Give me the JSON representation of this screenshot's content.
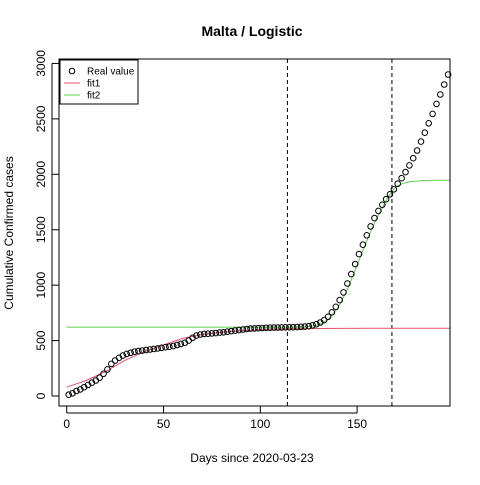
{
  "chart_data": {
    "type": "scatter",
    "title": "Malta / Logistic",
    "xlabel": "Days since 2020-03-23",
    "ylabel": "Cumulative Confirmed cases",
    "xlim": [
      -4,
      198
    ],
    "ylim": [
      -90,
      3040
    ],
    "x_ticks": [
      0,
      50,
      100,
      150
    ],
    "y_ticks": [
      0,
      500,
      1000,
      1500,
      2000,
      2500,
      3000
    ],
    "grid": false,
    "legend_position": "top-left",
    "vlines": [
      114,
      168
    ],
    "legend": [
      {
        "label": "Real value",
        "kind": "point",
        "color": "#000000"
      },
      {
        "label": "fit1",
        "kind": "line",
        "color": "#df536b"
      },
      {
        "label": "fit2",
        "kind": "line",
        "color": "#61d04f"
      }
    ],
    "series": [
      {
        "name": "Real value",
        "kind": "points",
        "color": "#000000",
        "points": [
          [
            1,
            12
          ],
          [
            3,
            25
          ],
          [
            5,
            45
          ],
          [
            7,
            60
          ],
          [
            9,
            80
          ],
          [
            11,
            100
          ],
          [
            13,
            120
          ],
          [
            15,
            140
          ],
          [
            17,
            165
          ],
          [
            19,
            200
          ],
          [
            21,
            240
          ],
          [
            23,
            290
          ],
          [
            25,
            320
          ],
          [
            27,
            345
          ],
          [
            29,
            365
          ],
          [
            31,
            380
          ],
          [
            33,
            390
          ],
          [
            35,
            400
          ],
          [
            37,
            405
          ],
          [
            39,
            410
          ],
          [
            41,
            415
          ],
          [
            43,
            420
          ],
          [
            45,
            425
          ],
          [
            47,
            430
          ],
          [
            49,
            435
          ],
          [
            51,
            440
          ],
          [
            53,
            445
          ],
          [
            55,
            450
          ],
          [
            57,
            460
          ],
          [
            59,
            470
          ],
          [
            61,
            480
          ],
          [
            63,
            500
          ],
          [
            65,
            525
          ],
          [
            67,
            545
          ],
          [
            69,
            555
          ],
          [
            71,
            560
          ],
          [
            73,
            562
          ],
          [
            75,
            565
          ],
          [
            77,
            568
          ],
          [
            79,
            572
          ],
          [
            81,
            575
          ],
          [
            83,
            580
          ],
          [
            85,
            585
          ],
          [
            87,
            590
          ],
          [
            89,
            595
          ],
          [
            91,
            600
          ],
          [
            93,
            605
          ],
          [
            95,
            608
          ],
          [
            97,
            610
          ],
          [
            99,
            612
          ],
          [
            101,
            614
          ],
          [
            103,
            615
          ],
          [
            105,
            616
          ],
          [
            107,
            617
          ],
          [
            109,
            618
          ],
          [
            111,
            619
          ],
          [
            113,
            620
          ],
          [
            115,
            620
          ],
          [
            117,
            621
          ],
          [
            119,
            622
          ],
          [
            121,
            624
          ],
          [
            123,
            626
          ],
          [
            125,
            630
          ],
          [
            127,
            638
          ],
          [
            129,
            648
          ],
          [
            131,
            663
          ],
          [
            133,
            685
          ],
          [
            135,
            715
          ],
          [
            137,
            755
          ],
          [
            139,
            805
          ],
          [
            141,
            865
          ],
          [
            143,
            935
          ],
          [
            145,
            1015
          ],
          [
            147,
            1100
          ],
          [
            149,
            1190
          ],
          [
            151,
            1280
          ],
          [
            153,
            1365
          ],
          [
            155,
            1450
          ],
          [
            157,
            1530
          ],
          [
            159,
            1605
          ],
          [
            161,
            1670
          ],
          [
            163,
            1725
          ],
          [
            165,
            1775
          ],
          [
            167,
            1820
          ],
          [
            169,
            1865
          ],
          [
            171,
            1915
          ],
          [
            173,
            1965
          ],
          [
            175,
            2020
          ],
          [
            177,
            2080
          ],
          [
            179,
            2145
          ],
          [
            181,
            2215
          ],
          [
            183,
            2295
          ],
          [
            185,
            2375
          ],
          [
            187,
            2460
          ],
          [
            189,
            2545
          ],
          [
            191,
            2635
          ],
          [
            193,
            2720
          ],
          [
            195,
            2810
          ],
          [
            197,
            2900
          ]
        ]
      },
      {
        "name": "fit1",
        "kind": "line",
        "color": "#df536b",
        "points": [
          [
            0,
            80
          ],
          [
            10,
            140
          ],
          [
            20,
            220
          ],
          [
            30,
            320
          ],
          [
            40,
            400
          ],
          [
            50,
            460
          ],
          [
            60,
            520
          ],
          [
            70,
            555
          ],
          [
            80,
            575
          ],
          [
            90,
            588
          ],
          [
            100,
            597
          ],
          [
            110,
            605
          ],
          [
            120,
            608
          ],
          [
            130,
            609
          ],
          [
            140,
            610
          ],
          [
            160,
            611
          ],
          [
            180,
            611
          ],
          [
            198,
            611
          ]
        ]
      },
      {
        "name": "fit2",
        "kind": "line",
        "color": "#61d04f",
        "points": [
          [
            0,
            622
          ],
          [
            20,
            622
          ],
          [
            40,
            622
          ],
          [
            60,
            622
          ],
          [
            80,
            622
          ],
          [
            100,
            622
          ],
          [
            120,
            623
          ],
          [
            125,
            626
          ],
          [
            130,
            640
          ],
          [
            135,
            690
          ],
          [
            140,
            790
          ],
          [
            145,
            960
          ],
          [
            150,
            1180
          ],
          [
            155,
            1400
          ],
          [
            160,
            1600
          ],
          [
            165,
            1760
          ],
          [
            168,
            1850
          ],
          [
            171,
            1895
          ],
          [
            174,
            1920
          ],
          [
            178,
            1935
          ],
          [
            184,
            1943
          ],
          [
            190,
            1946
          ],
          [
            198,
            1947
          ]
        ]
      }
    ]
  }
}
